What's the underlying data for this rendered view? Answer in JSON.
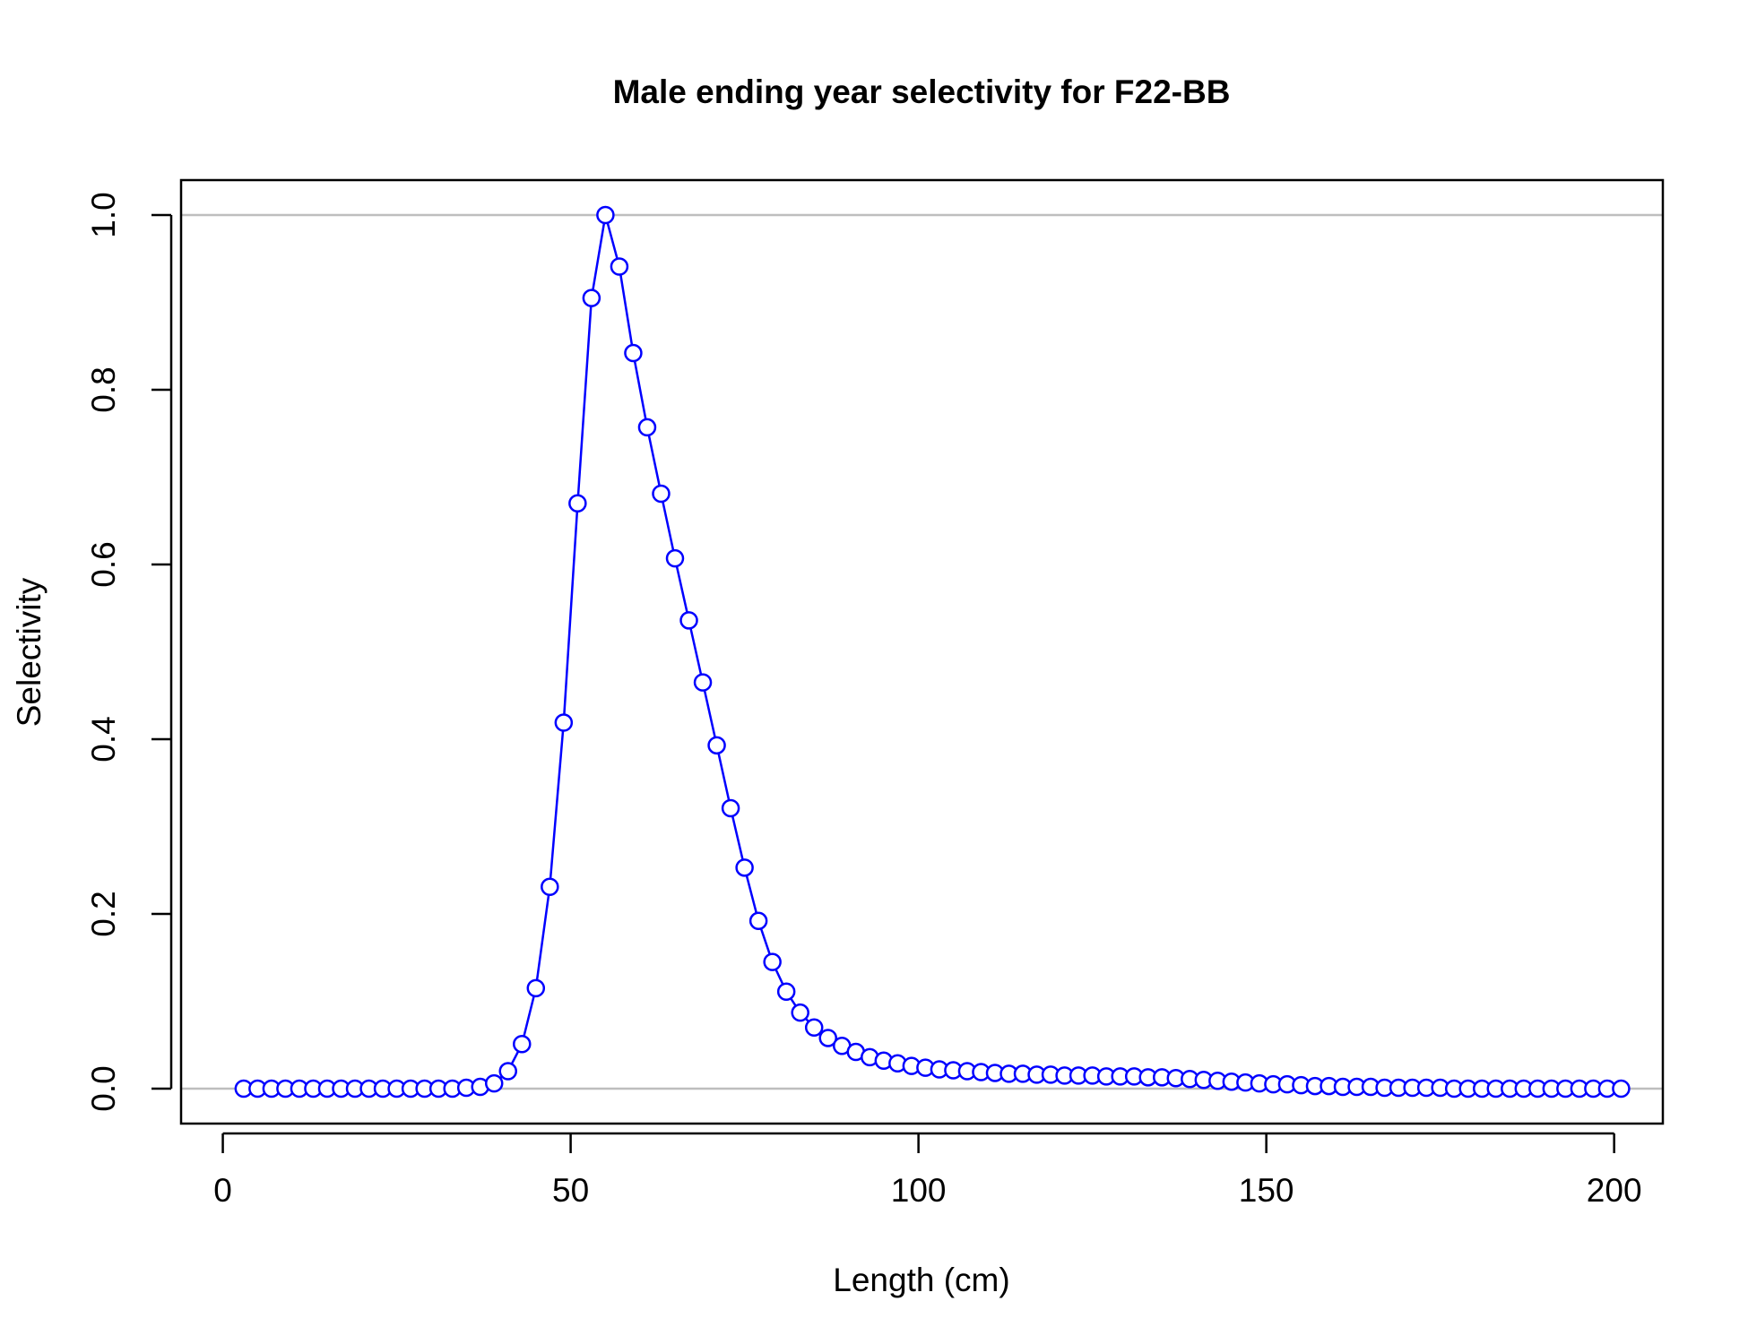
{
  "chart_data": {
    "type": "line",
    "title": "Male ending year selectivity for F22-BB",
    "xlabel": "Length (cm)",
    "ylabel": "Selectivity",
    "xlim": [
      -6,
      207
    ],
    "ylim": [
      -0.04,
      1.04
    ],
    "x_ticks": [
      0,
      50,
      100,
      150,
      200
    ],
    "x_tick_labels": [
      "0",
      "50",
      "100",
      "150",
      "200"
    ],
    "y_ticks": [
      0.0,
      0.2,
      0.4,
      0.6,
      0.8,
      1.0
    ],
    "y_tick_labels": [
      "0.0",
      "0.2",
      "0.4",
      "0.6",
      "0.8",
      "1.0"
    ],
    "reference_lines_y": [
      0,
      1
    ],
    "grid": false,
    "colors": {
      "series": "#0000ff",
      "reference_line": "#bebebe",
      "axes": "#000000"
    },
    "series": [
      {
        "x": [
          3,
          5,
          7,
          9,
          11,
          13,
          15,
          17,
          19,
          21,
          23,
          25,
          27,
          29,
          31,
          33,
          35,
          37,
          39,
          41,
          43,
          45,
          47,
          49,
          51,
          53,
          55,
          57,
          59,
          61,
          63,
          65,
          67,
          69,
          71,
          73,
          75,
          77,
          79,
          81,
          83,
          85,
          87,
          89,
          91,
          93,
          95,
          97,
          99,
          101,
          103,
          105,
          107,
          109,
          111,
          113,
          115,
          117,
          119,
          121,
          123,
          125,
          127,
          129,
          131,
          133,
          135,
          137,
          139,
          141,
          143,
          145,
          147,
          149,
          151,
          153,
          155,
          157,
          159,
          161,
          163,
          165,
          167,
          169,
          171,
          173,
          175,
          177,
          179,
          181,
          183,
          185,
          187,
          189,
          191,
          193,
          195,
          197,
          199,
          201
        ],
        "values": [
          0.0,
          0.0,
          0.0,
          0.0,
          0.0,
          0.0,
          0.0,
          0.0,
          0.0,
          0.0,
          0.0,
          0.0,
          0.0,
          0.0,
          0.0,
          0.0,
          0.001,
          0.002,
          0.006,
          0.02,
          0.051,
          0.115,
          0.231,
          0.419,
          0.67,
          0.905,
          1.0,
          0.941,
          0.842,
          0.757,
          0.681,
          0.607,
          0.536,
          0.465,
          0.393,
          0.321,
          0.253,
          0.192,
          0.145,
          0.111,
          0.087,
          0.07,
          0.058,
          0.049,
          0.042,
          0.036,
          0.032,
          0.029,
          0.026,
          0.024,
          0.022,
          0.021,
          0.02,
          0.019,
          0.018,
          0.017,
          0.017,
          0.016,
          0.016,
          0.015,
          0.015,
          0.015,
          0.014,
          0.014,
          0.014,
          0.013,
          0.013,
          0.012,
          0.011,
          0.01,
          0.009,
          0.008,
          0.007,
          0.006,
          0.005,
          0.005,
          0.004,
          0.003,
          0.003,
          0.002,
          0.002,
          0.002,
          0.001,
          0.001,
          0.001,
          0.001,
          0.001,
          0.0,
          0.0,
          0.0,
          0.0,
          0.0,
          0.0,
          0.0,
          0.0,
          0.0,
          0.0,
          0.0,
          0.0,
          0.0
        ]
      }
    ]
  }
}
